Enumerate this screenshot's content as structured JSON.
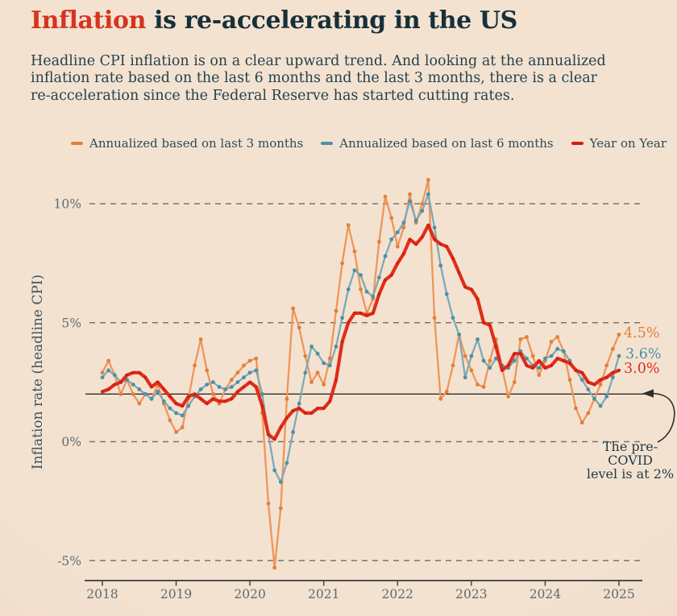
{
  "title": {
    "highlight": "Inflation",
    "rest": " is re-accelerating in the US"
  },
  "subtitle": {
    "lines": [
      "Headline CPI inflation is on a clear upward trend. And looking at the annualized",
      "inflation rate based on the last 6 months and the last 3 months, there is a clear",
      "re-acceleration since the Federal Reserve has started cutting rates."
    ]
  },
  "ylabel": "Inflation rate (headline CPI)",
  "annotation": {
    "line1": "The pre-COVID",
    "line2": "level is at 2%"
  },
  "colors": {
    "bg": "#f4e2d1",
    "ink": "#173039",
    "accent": "#d5341e",
    "text": "#23424d",
    "muted": "#5d6c70",
    "grid": "#595959",
    "baseline": "#1c1c1c",
    "line3m": "#ef955a",
    "line3m-dark": "#e0803a",
    "line6m": "#7fa9b6",
    "line6m-dark": "#4a92a4",
    "lineyoy": "#e02d1a",
    "lineyoy-dark": "#cd2110"
  },
  "chart_data": {
    "type": "line",
    "title": "Inflation is re-accelerating in the US",
    "xlabel": "",
    "ylabel": "Inflation rate (headline CPI)",
    "x_start": "2018-01",
    "x_end": "2025-01",
    "x_interval": "monthly",
    "xticks": [
      "2018",
      "2019",
      "2020",
      "2021",
      "2022",
      "2023",
      "2024",
      "2025"
    ],
    "yticks": [
      {
        "value": 10,
        "label": "10%"
      },
      {
        "value": 5,
        "label": "5%"
      },
      {
        "value": 0,
        "label": "0%"
      },
      {
        "value": -5,
        "label": "-5%"
      }
    ],
    "ylim": [
      -6,
      11.5
    ],
    "grid": "horizontal-dashed",
    "legend_position": "top",
    "baseline": {
      "value": 2,
      "note": "The pre-COVID level is at 2%"
    },
    "series": [
      {
        "name": "Annualized based on last 3 months",
        "color": "#ef955a",
        "dot_color": "#e0803a",
        "end_label": "4.5%",
        "values": [
          2.9,
          3.4,
          2.8,
          2.0,
          2.6,
          2.0,
          1.6,
          2.0,
          1.8,
          2.4,
          1.6,
          0.9,
          0.4,
          0.6,
          1.8,
          3.2,
          4.3,
          3.0,
          2.0,
          1.6,
          2.2,
          2.6,
          2.9,
          3.2,
          3.4,
          3.5,
          1.2,
          -2.6,
          -5.3,
          -2.8,
          1.8,
          5.6,
          4.8,
          3.6,
          2.5,
          2.9,
          2.4,
          3.5,
          5.5,
          7.5,
          9.1,
          8.0,
          6.4,
          5.4,
          6.0,
          8.4,
          10.3,
          9.4,
          8.2,
          9.0,
          10.4,
          9.2,
          10.0,
          11.0,
          5.2,
          1.8,
          2.1,
          3.2,
          4.5,
          3.6,
          3.0,
          2.4,
          2.3,
          3.4,
          4.3,
          3.1,
          1.9,
          2.5,
          4.3,
          4.4,
          3.6,
          2.8,
          3.4,
          4.2,
          4.4,
          3.8,
          2.6,
          1.4,
          0.8,
          1.2,
          1.8,
          2.4,
          3.2,
          3.9,
          4.5
        ]
      },
      {
        "name": "Annualized based on last 6 months",
        "color": "#7fa9b6",
        "dot_color": "#4a92a4",
        "end_label": "3.6%",
        "values": [
          2.7,
          3.0,
          2.8,
          2.5,
          2.6,
          2.4,
          2.2,
          2.0,
          1.8,
          2.1,
          1.7,
          1.4,
          1.2,
          1.1,
          1.5,
          1.9,
          2.2,
          2.4,
          2.5,
          2.3,
          2.2,
          2.3,
          2.5,
          2.7,
          2.9,
          3.0,
          2.0,
          0.3,
          -1.2,
          -1.7,
          -0.9,
          0.4,
          1.6,
          2.9,
          4.0,
          3.7,
          3.3,
          3.2,
          4.0,
          5.2,
          6.4,
          7.2,
          7.0,
          6.3,
          6.1,
          6.9,
          7.8,
          8.5,
          8.8,
          9.2,
          10.1,
          9.3,
          9.7,
          10.4,
          9.0,
          7.4,
          6.2,
          5.2,
          4.5,
          2.7,
          3.6,
          4.3,
          3.4,
          3.1,
          3.5,
          3.2,
          3.1,
          3.4,
          3.8,
          3.5,
          3.2,
          3.1,
          3.5,
          3.6,
          3.9,
          3.8,
          3.4,
          3.0,
          2.6,
          2.2,
          1.8,
          1.5,
          1.9,
          2.7,
          3.6
        ]
      },
      {
        "name": "Year on Year",
        "color": "#e02d1a",
        "dot_color": "#cd2110",
        "end_label": "3.0%",
        "values": [
          2.1,
          2.2,
          2.4,
          2.5,
          2.8,
          2.9,
          2.9,
          2.7,
          2.3,
          2.5,
          2.2,
          1.9,
          1.6,
          1.5,
          1.9,
          2.0,
          1.8,
          1.6,
          1.8,
          1.7,
          1.7,
          1.8,
          2.1,
          2.3,
          2.5,
          2.3,
          1.5,
          0.3,
          0.1,
          0.6,
          1.0,
          1.3,
          1.4,
          1.2,
          1.2,
          1.4,
          1.4,
          1.7,
          2.6,
          4.2,
          5.0,
          5.4,
          5.4,
          5.3,
          5.4,
          6.2,
          6.8,
          7.0,
          7.5,
          7.9,
          8.5,
          8.3,
          8.6,
          9.1,
          8.5,
          8.3,
          8.2,
          7.7,
          7.1,
          6.5,
          6.4,
          6.0,
          5.0,
          4.9,
          4.0,
          3.0,
          3.2,
          3.7,
          3.7,
          3.2,
          3.1,
          3.4,
          3.1,
          3.2,
          3.5,
          3.4,
          3.3,
          3.0,
          2.9,
          2.5,
          2.4,
          2.6,
          2.7,
          2.9,
          3.0
        ]
      }
    ]
  }
}
